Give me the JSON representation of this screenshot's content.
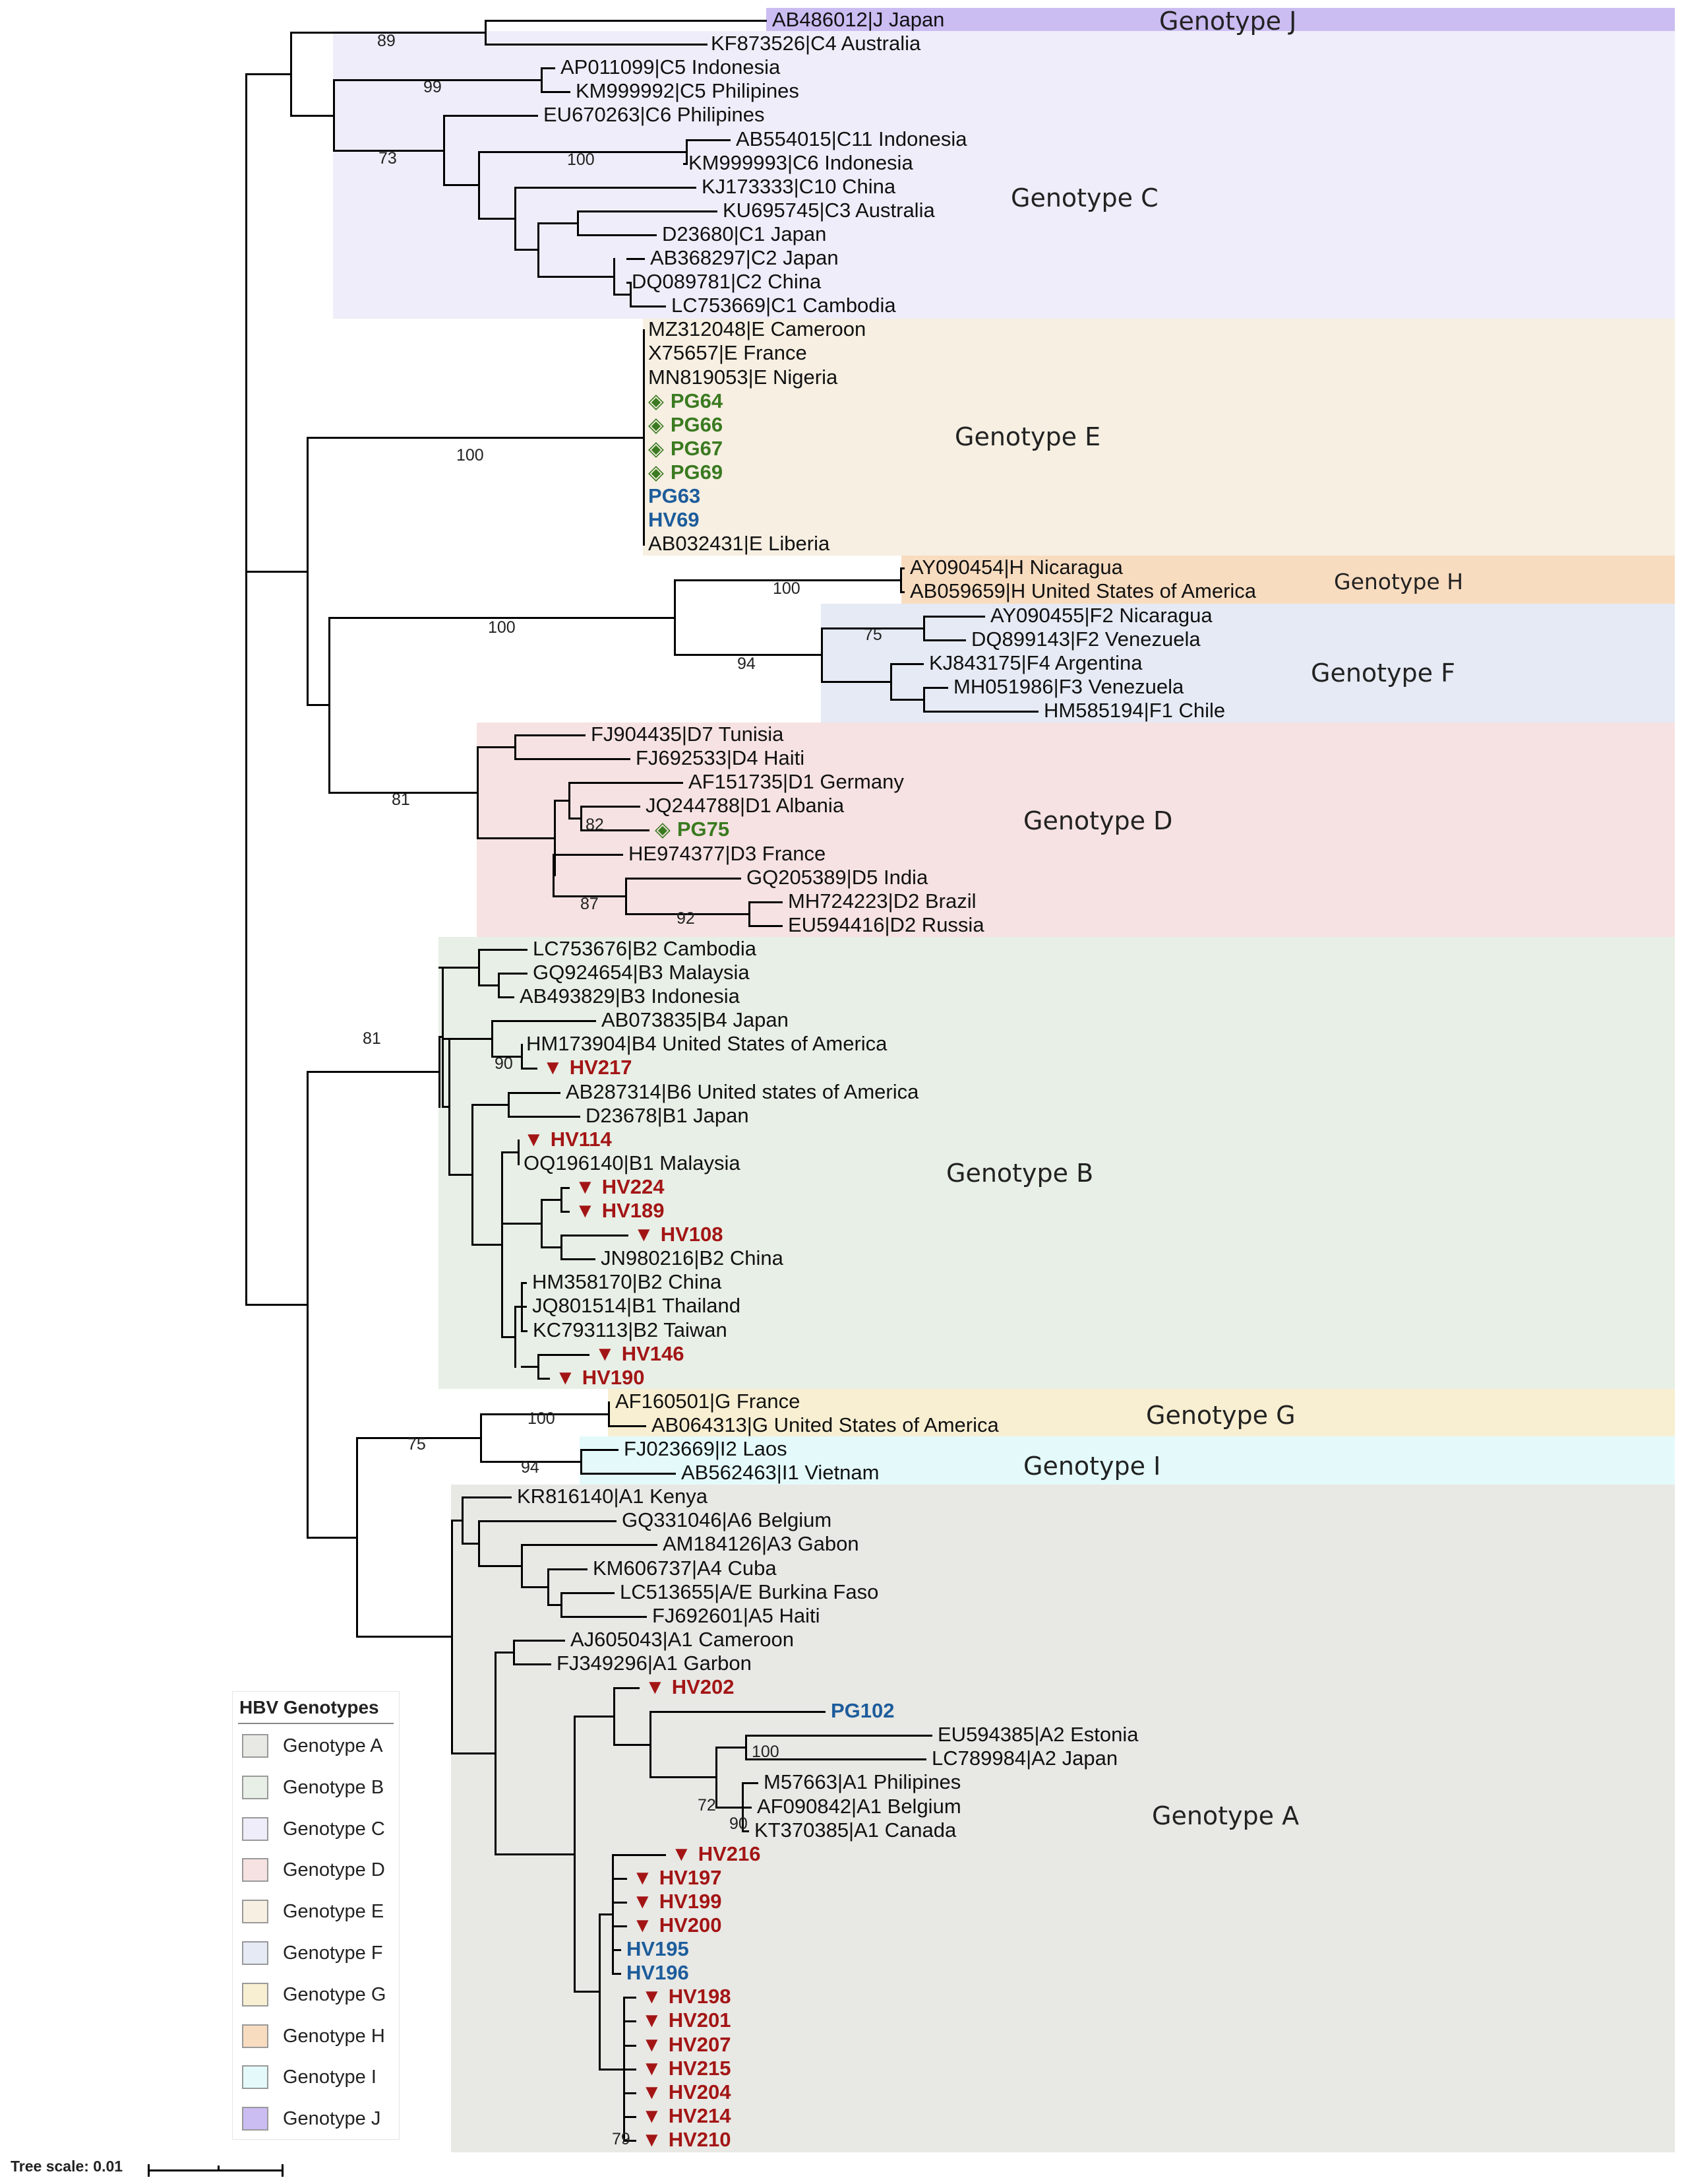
{
  "genotypes": {
    "J": {
      "label": "Genotype J",
      "color": "#cbbcf2"
    },
    "C": {
      "label": "Genotype C",
      "color": "#efedf9"
    },
    "E": {
      "label": "Genotype E",
      "color": "#f6efe2"
    },
    "H": {
      "label": "Genotype H",
      "color": "#f8dcc0"
    },
    "F": {
      "label": "Genotype F",
      "color": "#e5eaf4"
    },
    "D": {
      "label": "Genotype D",
      "color": "#f6e2e2"
    },
    "B": {
      "label": "Genotype B",
      "color": "#e8efe6"
    },
    "G": {
      "label": "Genotype G",
      "color": "#f8efd2"
    },
    "I": {
      "label": "Genotype I",
      "color": "#e4fafa"
    },
    "A": {
      "label": "Genotype A",
      "color": "#e8e8e4"
    }
  },
  "leaves": [
    {
      "text": "AB486012|J Japan",
      "style": "plain"
    },
    {
      "text": "KF873526|C4 Australia",
      "style": "plain"
    },
    {
      "text": "AP011099|C5 Indonesia",
      "style": "plain"
    },
    {
      "text": "KM999992|C5 Philipines",
      "style": "plain"
    },
    {
      "text": "EU670263|C6 Philipines",
      "style": "plain"
    },
    {
      "text": "AB554015|C11 Indonesia",
      "style": "plain"
    },
    {
      "text": "KM999993|C6 Indonesia",
      "style": "plain"
    },
    {
      "text": "KJ173333|C10 China",
      "style": "plain"
    },
    {
      "text": "KU695745|C3 Australia",
      "style": "plain"
    },
    {
      "text": "D23680|C1 Japan",
      "style": "plain"
    },
    {
      "text": "AB368297|C2 Japan",
      "style": "plain"
    },
    {
      "text": "DQ089781|C2 China",
      "style": "plain"
    },
    {
      "text": "LC753669|C1 Cambodia",
      "style": "plain"
    },
    {
      "text": "MZ312048|E Cameroon",
      "style": "plain"
    },
    {
      "text": "X75657|E France",
      "style": "plain"
    },
    {
      "text": "MN819053|E Nigeria",
      "style": "plain"
    },
    {
      "text": "PG64",
      "style": "green",
      "marker": "◈"
    },
    {
      "text": "PG66",
      "style": "green",
      "marker": "◈"
    },
    {
      "text": "PG67",
      "style": "green",
      "marker": "◈"
    },
    {
      "text": "PG69",
      "style": "green",
      "marker": "◈"
    },
    {
      "text": "PG63",
      "style": "blue"
    },
    {
      "text": "HV69",
      "style": "blue"
    },
    {
      "text": "AB032431|E Liberia",
      "style": "plain"
    },
    {
      "text": "AY090454|H Nicaragua",
      "style": "plain"
    },
    {
      "text": "AB059659|H United States of America",
      "style": "plain"
    },
    {
      "text": "AY090455|F2 Nicaragua",
      "style": "plain"
    },
    {
      "text": "DQ899143|F2 Venezuela",
      "style": "plain"
    },
    {
      "text": "KJ843175|F4 Argentina",
      "style": "plain"
    },
    {
      "text": "MH051986|F3 Venezuela",
      "style": "plain"
    },
    {
      "text": "HM585194|F1 Chile",
      "style": "plain"
    },
    {
      "text": "FJ904435|D7 Tunisia",
      "style": "plain"
    },
    {
      "text": "FJ692533|D4 Haiti",
      "style": "plain"
    },
    {
      "text": "AF151735|D1 Germany",
      "style": "plain"
    },
    {
      "text": "JQ244788|D1 Albania",
      "style": "plain"
    },
    {
      "text": "PG75",
      "style": "green",
      "marker": "◈"
    },
    {
      "text": "HE974377|D3 France",
      "style": "plain"
    },
    {
      "text": "GQ205389|D5 India",
      "style": "plain"
    },
    {
      "text": "MH724223|D2 Brazil",
      "style": "plain"
    },
    {
      "text": "EU594416|D2 Russia",
      "style": "plain"
    },
    {
      "text": "LC753676|B2 Cambodia",
      "style": "plain"
    },
    {
      "text": "GQ924654|B3 Malaysia",
      "style": "plain"
    },
    {
      "text": "AB493829|B3 Indonesia",
      "style": "plain"
    },
    {
      "text": "AB073835|B4 Japan",
      "style": "plain"
    },
    {
      "text": "HM173904|B4 United States of America",
      "style": "plain"
    },
    {
      "text": "HV217",
      "style": "red",
      "marker": "▼"
    },
    {
      "text": "AB287314|B6 United states of America",
      "style": "plain"
    },
    {
      "text": "D23678|B1 Japan",
      "style": "plain"
    },
    {
      "text": "HV114",
      "style": "red",
      "marker": "▼"
    },
    {
      "text": "OQ196140|B1 Malaysia",
      "style": "plain"
    },
    {
      "text": "HV224",
      "style": "red",
      "marker": "▼"
    },
    {
      "text": "HV189",
      "style": "red",
      "marker": "▼"
    },
    {
      "text": "HV108",
      "style": "red",
      "marker": "▼"
    },
    {
      "text": "JN980216|B2 China",
      "style": "plain"
    },
    {
      "text": "HM358170|B2 China",
      "style": "plain"
    },
    {
      "text": "JQ801514|B1 Thailand",
      "style": "plain"
    },
    {
      "text": "KC793113|B2 Taiwan",
      "style": "plain"
    },
    {
      "text": "HV146",
      "style": "red",
      "marker": "▼"
    },
    {
      "text": "HV190",
      "style": "red",
      "marker": "▼"
    },
    {
      "text": "AF160501|G France",
      "style": "plain"
    },
    {
      "text": "AB064313|G United States of America",
      "style": "plain"
    },
    {
      "text": "FJ023669|I2 Laos",
      "style": "plain"
    },
    {
      "text": "AB562463|I1 Vietnam",
      "style": "plain"
    },
    {
      "text": "KR816140|A1 Kenya",
      "style": "plain"
    },
    {
      "text": "GQ331046|A6 Belgium",
      "style": "plain"
    },
    {
      "text": "AM184126|A3 Gabon",
      "style": "plain"
    },
    {
      "text": "KM606737|A4 Cuba",
      "style": "plain"
    },
    {
      "text": "LC513655|A/E Burkina Faso",
      "style": "plain"
    },
    {
      "text": "FJ692601|A5 Haiti",
      "style": "plain"
    },
    {
      "text": "AJ605043|A1 Cameroon",
      "style": "plain"
    },
    {
      "text": "FJ349296|A1 Garbon",
      "style": "plain"
    },
    {
      "text": "HV202",
      "style": "red",
      "marker": "▼"
    },
    {
      "text": "PG102",
      "style": "blue"
    },
    {
      "text": "EU594385|A2 Estonia",
      "style": "plain"
    },
    {
      "text": "LC789984|A2 Japan",
      "style": "plain"
    },
    {
      "text": "M57663|A1 Philipines",
      "style": "plain"
    },
    {
      "text": "AF090842|A1 Belgium",
      "style": "plain"
    },
    {
      "text": "KT370385|A1 Canada",
      "style": "plain"
    },
    {
      "text": "HV216",
      "style": "red",
      "marker": "▼"
    },
    {
      "text": "HV197",
      "style": "red",
      "marker": "▼"
    },
    {
      "text": "HV199",
      "style": "red",
      "marker": "▼"
    },
    {
      "text": "HV200",
      "style": "red",
      "marker": "▼"
    },
    {
      "text": "HV195",
      "style": "blue"
    },
    {
      "text": "HV196",
      "style": "blue"
    },
    {
      "text": "HV198",
      "style": "red",
      "marker": "▼"
    },
    {
      "text": "HV201",
      "style": "red",
      "marker": "▼"
    },
    {
      "text": "HV207",
      "style": "red",
      "marker": "▼"
    },
    {
      "text": "HV215",
      "style": "red",
      "marker": "▼"
    },
    {
      "text": "HV204",
      "style": "red",
      "marker": "▼"
    },
    {
      "text": "HV214",
      "style": "red",
      "marker": "▼"
    },
    {
      "text": "HV210",
      "style": "red",
      "marker": "▼"
    }
  ],
  "bootstrap": [
    "89",
    "99",
    "73",
    "100",
    "100",
    "100",
    "100",
    "94",
    "75",
    "81",
    "82",
    "87",
    "92",
    "81",
    "90",
    "100",
    "75",
    "94",
    "100",
    "72",
    "90",
    "79"
  ],
  "legend": {
    "title": "HBV Genotypes",
    "items": [
      {
        "label": "Genotype A",
        "color": "#e8e8e4"
      },
      {
        "label": "Genotype B",
        "color": "#e8efe6"
      },
      {
        "label": "Genotype C",
        "color": "#efedf9"
      },
      {
        "label": "Genotype D",
        "color": "#f6e2e2"
      },
      {
        "label": "Genotype E",
        "color": "#f6efe2"
      },
      {
        "label": "Genotype F",
        "color": "#e5eaf4"
      },
      {
        "label": "Genotype G",
        "color": "#f8efd2"
      },
      {
        "label": "Genotype H",
        "color": "#f8dcc0"
      },
      {
        "label": "Genotype I",
        "color": "#e4fafa"
      },
      {
        "label": "Genotype J",
        "color": "#cbbcf2"
      }
    ]
  },
  "scale": {
    "label": "Tree scale: 0.01"
  }
}
